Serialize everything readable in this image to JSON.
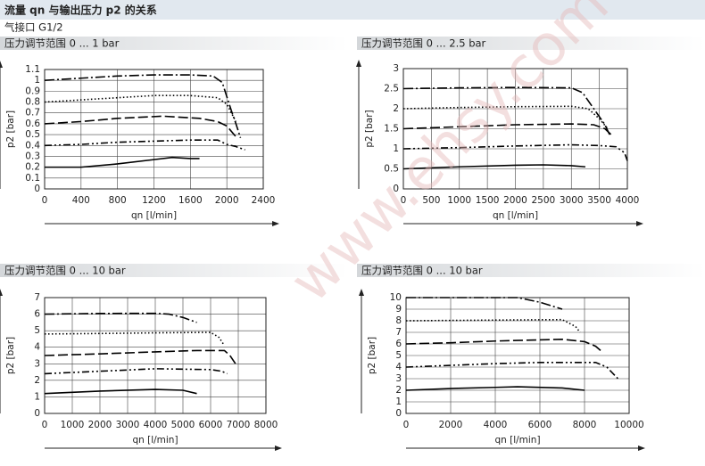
{
  "header": {
    "title": "流量 qn 与输出压力 p2 的关系",
    "subtitle": "气接口 G1/2"
  },
  "watermark": "www.ehsy.com",
  "chart_data": [
    {
      "type": "line",
      "title": "压力调节范围 0 ... 1 bar",
      "xlabel": "qn [l/min]",
      "ylabel": "p2 [bar]",
      "xlim": [
        0,
        2400
      ],
      "ylim": [
        0,
        1.1
      ],
      "xticks": [
        0,
        400,
        800,
        1200,
        1600,
        2000,
        2400
      ],
      "yticks": [
        0,
        0.1,
        0.2,
        0.3,
        0.4,
        0.5,
        0.6,
        0.7,
        0.8,
        0.9,
        1,
        1.1
      ],
      "grid": true,
      "series": [
        {
          "color": "#000000",
          "linestyle": "dashdot",
          "x": [
            0,
            400,
            800,
            1200,
            1600,
            1850,
            1950,
            2000,
            2050,
            2100,
            2150
          ],
          "values": [
            1.0,
            1.02,
            1.04,
            1.05,
            1.05,
            1.04,
            0.98,
            0.85,
            0.72,
            0.6,
            0.47
          ]
        },
        {
          "color": "#000000",
          "linestyle": "dotted",
          "x": [
            0,
            400,
            800,
            1200,
            1600,
            1900,
            2000,
            2050,
            2100
          ],
          "values": [
            0.8,
            0.82,
            0.84,
            0.86,
            0.86,
            0.84,
            0.78,
            0.7,
            0.62
          ]
        },
        {
          "color": "#000000",
          "linestyle": "dashed",
          "x": [
            0,
            400,
            800,
            1300,
            1700,
            1900,
            2000,
            2100
          ],
          "values": [
            0.6,
            0.62,
            0.65,
            0.67,
            0.65,
            0.62,
            0.58,
            0.48
          ]
        },
        {
          "color": "#000000",
          "linestyle": "dashdotdot",
          "x": [
            0,
            400,
            800,
            1200,
            1600,
            1900,
            2000,
            2100,
            2200
          ],
          "values": [
            0.4,
            0.41,
            0.43,
            0.44,
            0.45,
            0.45,
            0.41,
            0.39,
            0.36
          ]
        },
        {
          "color": "#000000",
          "linestyle": "solid",
          "x": [
            0,
            400,
            800,
            1200,
            1400,
            1600,
            1700
          ],
          "values": [
            0.2,
            0.2,
            0.23,
            0.27,
            0.29,
            0.28,
            0.28
          ]
        }
      ]
    },
    {
      "type": "line",
      "title": "压力调节范围 0 ... 2.5 bar",
      "xlabel": "qn [l/min]",
      "ylabel": "p2 [bar]",
      "xlim": [
        0,
        4000
      ],
      "ylim": [
        0,
        3
      ],
      "xticks": [
        0,
        500,
        1000,
        1500,
        2000,
        2500,
        3000,
        3500,
        4000
      ],
      "yticks": [
        0,
        0.5,
        1,
        1.5,
        2,
        2.5,
        3
      ],
      "grid": true,
      "series": [
        {
          "color": "#000000",
          "linestyle": "dashdot",
          "x": [
            0,
            1000,
            2000,
            3000,
            3200,
            3400,
            3600,
            3700
          ],
          "values": [
            2.5,
            2.52,
            2.53,
            2.52,
            2.4,
            2.0,
            1.6,
            1.3
          ]
        },
        {
          "color": "#000000",
          "linestyle": "dotted",
          "x": [
            0,
            1000,
            2000,
            3000,
            3300,
            3500,
            3650
          ],
          "values": [
            2.0,
            2.03,
            2.05,
            2.06,
            2.0,
            1.75,
            1.5
          ]
        },
        {
          "color": "#000000",
          "linestyle": "dashed",
          "x": [
            0,
            1000,
            2000,
            3000,
            3400,
            3600,
            3750
          ],
          "values": [
            1.5,
            1.55,
            1.6,
            1.62,
            1.6,
            1.5,
            1.3
          ]
        },
        {
          "color": "#000000",
          "linestyle": "dashdotdot",
          "x": [
            0,
            1000,
            2000,
            3000,
            3500,
            3800,
            3950,
            4000
          ],
          "values": [
            1.0,
            1.03,
            1.07,
            1.1,
            1.08,
            1.05,
            0.9,
            0.7
          ]
        },
        {
          "color": "#000000",
          "linestyle": "solid",
          "x": [
            0,
            1000,
            2000,
            2500,
            3000,
            3250
          ],
          "values": [
            0.5,
            0.55,
            0.59,
            0.6,
            0.58,
            0.55
          ]
        }
      ]
    },
    {
      "type": "line",
      "title": "压力调节范围 0 ... 10 bar",
      "xlabel": "qn [l/min]",
      "ylabel": "p2 [bar]",
      "xlim": [
        0,
        8000
      ],
      "ylim": [
        0,
        7
      ],
      "xticks": [
        0,
        1000,
        2000,
        3000,
        4000,
        5000,
        6000,
        7000,
        8000
      ],
      "yticks": [
        0,
        1,
        2,
        3,
        4,
        5,
        6,
        7
      ],
      "grid": true,
      "series": [
        {
          "color": "#000000",
          "linestyle": "dashdot",
          "x": [
            0,
            1000,
            2000,
            3000,
            4000,
            4500,
            5000,
            5500
          ],
          "values": [
            6.0,
            6.02,
            6.04,
            6.05,
            6.05,
            6.0,
            5.8,
            5.5
          ]
        },
        {
          "color": "#000000",
          "linestyle": "dotted",
          "x": [
            0,
            2000,
            4000,
            6000,
            6300,
            6500
          ],
          "values": [
            4.8,
            4.83,
            4.87,
            4.9,
            4.6,
            4.1
          ]
        },
        {
          "color": "#000000",
          "linestyle": "dashed",
          "x": [
            0,
            2000,
            4000,
            5500,
            6500,
            6700,
            6900
          ],
          "values": [
            3.5,
            3.6,
            3.72,
            3.8,
            3.8,
            3.5,
            3.0
          ]
        },
        {
          "color": "#000000",
          "linestyle": "dashdotdot",
          "x": [
            0,
            2000,
            4000,
            6000,
            6400,
            6600
          ],
          "values": [
            2.4,
            2.55,
            2.7,
            2.65,
            2.55,
            2.4
          ]
        },
        {
          "color": "#000000",
          "linestyle": "solid",
          "x": [
            0,
            2000,
            4000,
            5000,
            5500
          ],
          "values": [
            1.2,
            1.35,
            1.45,
            1.4,
            1.2
          ]
        }
      ]
    },
    {
      "type": "line",
      "title": "压力调节范围 0 ... 10 bar",
      "xlabel": "qn [l/min]",
      "ylabel": "p2 [bar]",
      "xlim": [
        0,
        10000
      ],
      "ylim": [
        0,
        10
      ],
      "xticks": [
        0,
        2000,
        4000,
        6000,
        8000,
        10000
      ],
      "yticks": [
        0,
        1,
        2,
        3,
        4,
        5,
        6,
        7,
        8,
        9,
        10
      ],
      "grid": true,
      "series": [
        {
          "color": "#000000",
          "linestyle": "dashdot",
          "x": [
            0,
            2000,
            4000,
            5000,
            6000,
            7000
          ],
          "values": [
            10,
            10,
            10,
            10,
            9.6,
            9.0
          ]
        },
        {
          "color": "#000000",
          "linestyle": "dotted",
          "x": [
            0,
            2000,
            4000,
            7000,
            7600,
            7800
          ],
          "values": [
            8.0,
            8.03,
            8.06,
            8.1,
            7.5,
            7.0
          ]
        },
        {
          "color": "#000000",
          "linestyle": "dashed",
          "x": [
            0,
            2000,
            4000,
            7000,
            8000,
            8500,
            8800
          ],
          "values": [
            6.0,
            6.1,
            6.25,
            6.4,
            6.2,
            5.8,
            5.3
          ]
        },
        {
          "color": "#000000",
          "linestyle": "dashdotdot",
          "x": [
            0,
            2000,
            4000,
            6000,
            8500,
            9000,
            9500
          ],
          "values": [
            4.0,
            4.15,
            4.3,
            4.4,
            4.4,
            4.0,
            3.0
          ]
        },
        {
          "color": "#000000",
          "linestyle": "solid",
          "x": [
            0,
            2000,
            4000,
            5000,
            7000,
            8000
          ],
          "values": [
            2.0,
            2.15,
            2.25,
            2.3,
            2.2,
            2.0
          ]
        }
      ]
    }
  ]
}
